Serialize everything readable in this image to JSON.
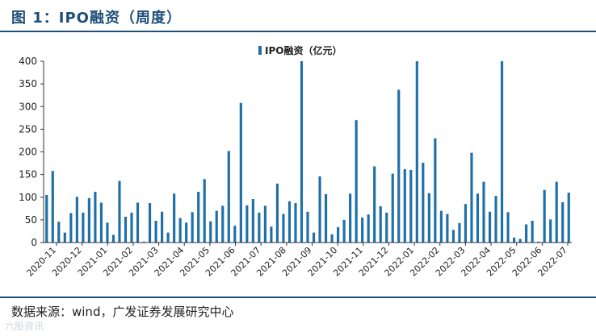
{
  "header": {
    "title": "图 1：IPO融资（周度）"
  },
  "footer": {
    "source": "数据来源：wind，广发证券发展研究中心",
    "watermark": "六股资讯"
  },
  "chart_data": {
    "type": "bar",
    "color": "#1f6fa8",
    "legend": {
      "label": "IPO融资（亿元）",
      "position": "top-center"
    },
    "ylim": [
      0,
      400
    ],
    "yticks": [
      0,
      50,
      100,
      150,
      200,
      250,
      300,
      350,
      400
    ],
    "xtick_labels": [
      "2020-11",
      "2020-12",
      "2021-01",
      "2021-02",
      "2021-03",
      "2021-04",
      "2021-05",
      "2021-06",
      "2021-07",
      "2021-08",
      "2021-09",
      "2021-10",
      "2021-11",
      "2021-12",
      "2022-01",
      "2022-02",
      "2022-03",
      "2022-04",
      "2022-05",
      "2022-06",
      "2022-07"
    ],
    "values": [
      105,
      158,
      46,
      22,
      65,
      101,
      66,
      98,
      112,
      88,
      44,
      17,
      136,
      57,
      66,
      88,
      2,
      87,
      48,
      68,
      22,
      108,
      54,
      44,
      67,
      112,
      140,
      47,
      70,
      81,
      202,
      37,
      308,
      82,
      96,
      66,
      81,
      35,
      130,
      63,
      91,
      87,
      400,
      68,
      22,
      146,
      107,
      18,
      34,
      50,
      108,
      270,
      55,
      62,
      168,
      80,
      66,
      152,
      337,
      162,
      160,
      400,
      176,
      109,
      230,
      70,
      63,
      28,
      43,
      85,
      198,
      108,
      134,
      68,
      103,
      400,
      67,
      11,
      8,
      40,
      48,
      2,
      116,
      51,
      134,
      89,
      110
    ]
  }
}
